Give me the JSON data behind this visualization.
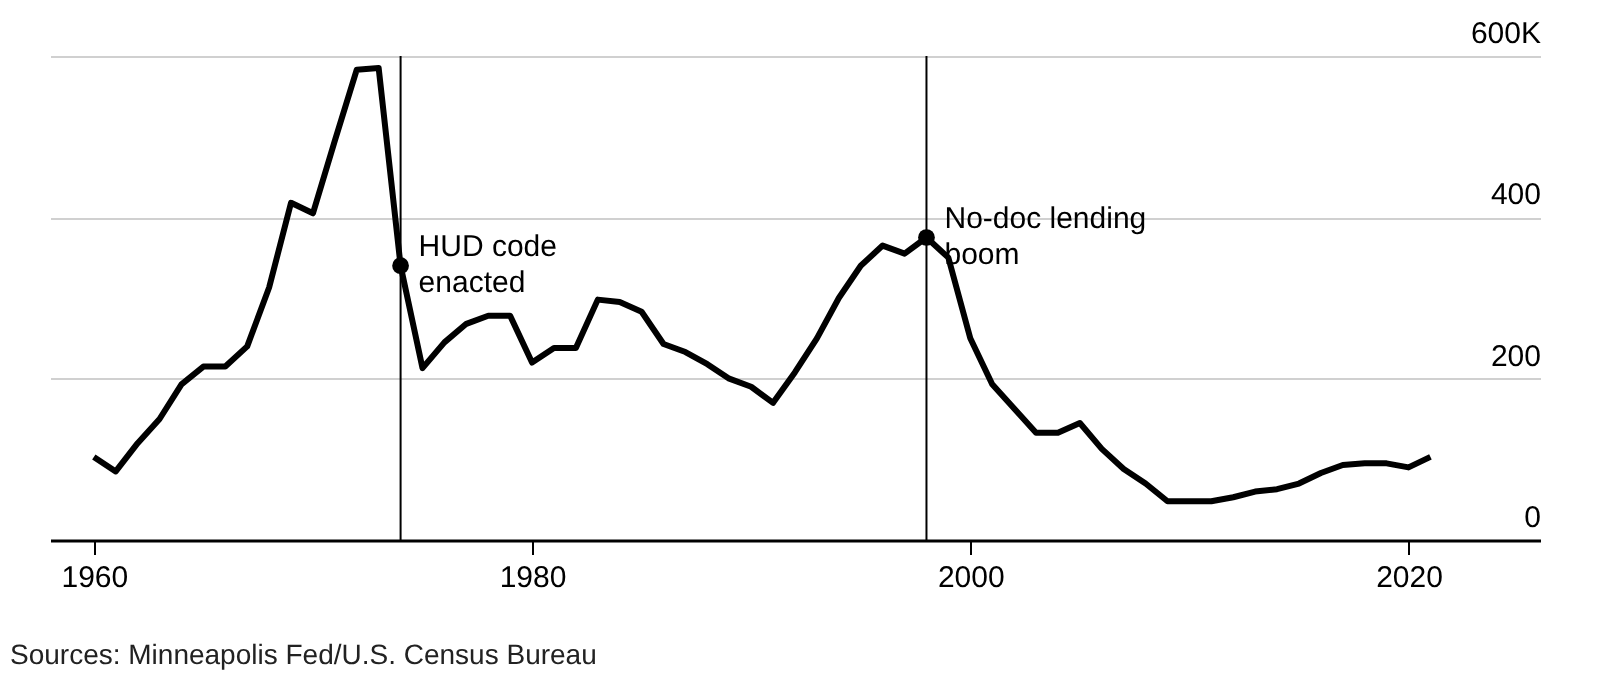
{
  "chart_data": {
    "type": "line",
    "x": [
      1960,
      1961,
      1962,
      1963,
      1964,
      1965,
      1966,
      1967,
      1968,
      1969,
      1970,
      1971,
      1972,
      1973,
      1974,
      1975,
      1976,
      1977,
      1978,
      1979,
      1980,
      1981,
      1982,
      1983,
      1984,
      1985,
      1986,
      1987,
      1988,
      1989,
      1990,
      1991,
      1992,
      1993,
      1994,
      1995,
      1996,
      1997,
      1998,
      1999,
      2000,
      2001,
      2002,
      2003,
      2004,
      2005,
      2006,
      2007,
      2008,
      2009,
      2010,
      2011,
      2012,
      2013,
      2014,
      2015,
      2016,
      2017,
      2018,
      2019,
      2020,
      2021
    ],
    "series": [
      {
        "color": "#000000",
        "values": [
          103,
          85,
          120,
          150,
          193,
          215,
          215,
          240,
          313,
          418,
          405,
          495,
          583,
          585,
          340,
          213,
          245,
          268,
          278,
          278,
          220,
          238,
          238,
          298,
          295,
          283,
          243,
          233,
          218,
          200,
          190,
          170,
          208,
          250,
          300,
          340,
          365,
          355,
          375,
          350,
          250,
          193,
          163,
          133,
          133,
          145,
          113,
          88,
          70,
          48,
          48,
          48,
          53,
          60,
          63,
          70,
          83,
          93,
          95,
          95,
          90,
          103
        ]
      }
    ],
    "xlim": [
      1958,
      2026
    ],
    "xticks": [
      1960,
      1980,
      2000,
      2020
    ],
    "ylim": [
      0,
      600
    ],
    "yticks": [
      0,
      200,
      400,
      {
        "value": 600,
        "label": "600K"
      }
    ],
    "grid": "y",
    "line_style": "solid",
    "ref_lines": [
      {
        "axis": "x",
        "value": 1974,
        "color": "#000000"
      },
      {
        "axis": "x",
        "value": 1998,
        "color": "#000000"
      }
    ],
    "annotations": [
      {
        "text": "HUD code enacted",
        "x": 1974,
        "y": 340
      },
      {
        "text": "No-doc lending boom",
        "x": 1998,
        "y": 375
      },
      "Sources: Minneapolis Fed/U.S. Census Bureau"
    ]
  }
}
